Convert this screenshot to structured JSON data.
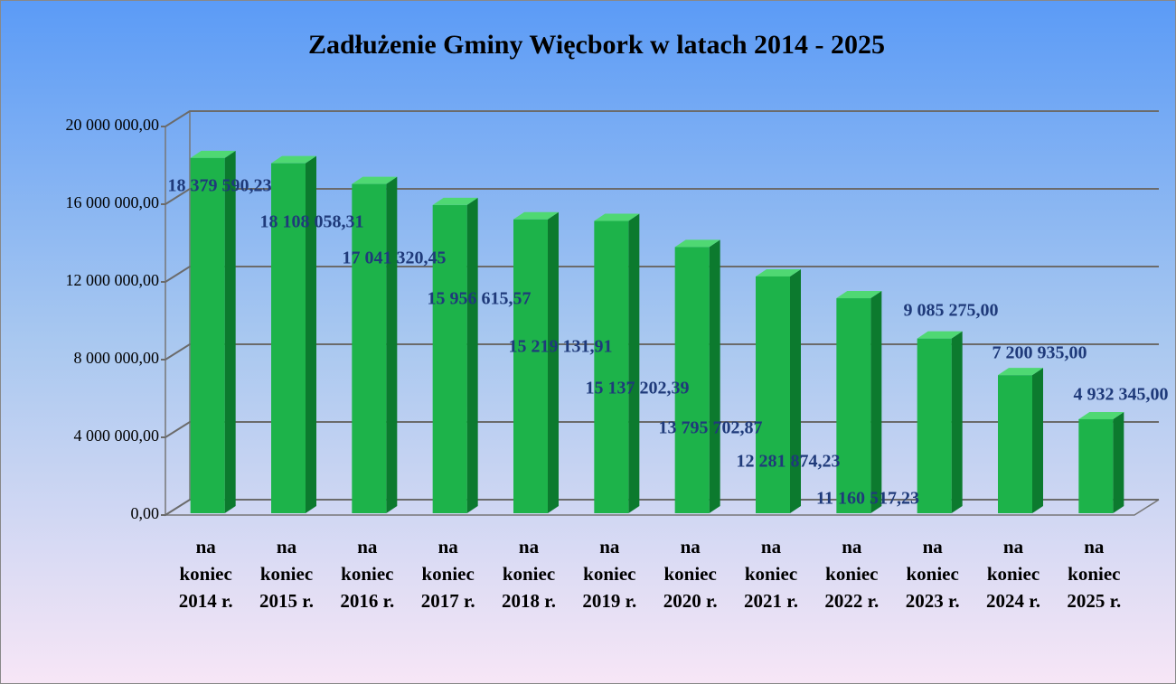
{
  "chart_data": {
    "type": "bar3d",
    "title": "Zadłużenie Gminy Więcbork w latach 2014 - 2025",
    "categories": [
      "na koniec 2014 r.",
      "na koniec 2015 r.",
      "na koniec 2016 r.",
      "na koniec 2017 r.",
      "na koniec 2018 r.",
      "na koniec 2019 r.",
      "na koniec 2020 r.",
      "na koniec 2021 r.",
      "na koniec 2022 r.",
      "na koniec 2023 r.",
      "na koniec 2024 r.",
      "na koniec 2025 r."
    ],
    "values": [
      18379590.23,
      18108058.31,
      17041320.45,
      15956615.57,
      15219131.91,
      15137202.39,
      13795702.87,
      12281874.23,
      11160517.23,
      9085275.0,
      7200935.0,
      4932345.0
    ],
    "value_labels": [
      "18 379 590,23",
      "18 108 058,31",
      "17 041 320,45",
      "15 956 615,57",
      "15 219 131,91",
      "15 137 202,39",
      "13 795 702,87",
      "12 281 874,23",
      "11 160 517,23",
      "9 085 275,00",
      "7 200 935,00",
      "4 932 345,00"
    ],
    "color": "#1db34a",
    "ylim": [
      0,
      20000000
    ],
    "yticks": [
      {
        "value": 0,
        "label": "0,00"
      },
      {
        "value": 4000000,
        "label": "4 000 000,00"
      },
      {
        "value": 8000000,
        "label": "8 000 000,00"
      },
      {
        "value": 12000000,
        "label": "12 000 000,00"
      },
      {
        "value": 16000000,
        "label": "16 000 000,00"
      },
      {
        "value": 20000000,
        "label": "20 000 000,00"
      }
    ],
    "grid": true
  }
}
